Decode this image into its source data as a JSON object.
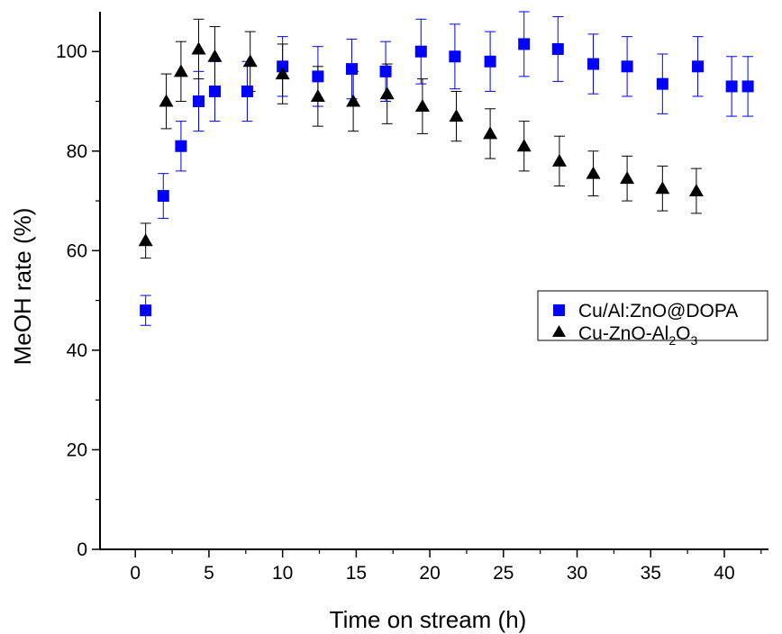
{
  "chart_data": {
    "type": "scatter",
    "xlabel": "Time on stream (h)",
    "ylabel": "MeOH rate (%)",
    "xlim": [
      -2.4,
      43
    ],
    "ylim": [
      0,
      108
    ],
    "xticks": [
      0,
      5,
      10,
      15,
      20,
      25,
      30,
      35,
      40
    ],
    "yticks": [
      0,
      20,
      40,
      60,
      80,
      100
    ],
    "grid": false,
    "legend_position": "right",
    "series": [
      {
        "name": "Cu/Al:ZnO@DOPA",
        "marker": "square",
        "color": "#0000ff",
        "x": [
          0.7,
          1.9,
          3.1,
          4.3,
          5.4,
          7.6,
          10.0,
          12.4,
          14.7,
          17.0,
          19.4,
          21.7,
          24.1,
          26.4,
          28.7,
          31.1,
          33.4,
          35.8,
          38.2,
          40.5,
          41.6
        ],
        "y": [
          48,
          71,
          81,
          90,
          92,
          92,
          97,
          95,
          96.5,
          96,
          100,
          99,
          98,
          101.5,
          100.5,
          97.5,
          97,
          93.5,
          97,
          93,
          93
        ],
        "err": [
          3,
          4.5,
          5,
          6,
          6,
          6,
          6,
          6,
          6,
          6,
          6.5,
          6.5,
          6,
          6.5,
          6.5,
          6,
          6,
          6,
          6,
          6,
          6
        ]
      },
      {
        "name": "Cu-ZnO-Al₂O₃",
        "name_main": "Cu-ZnO-Al",
        "name_sub1": "2",
        "name_mid": "O",
        "name_sub2": "3",
        "marker": "triangle",
        "color": "#000000",
        "x": [
          0.7,
          2.1,
          3.1,
          4.3,
          5.4,
          7.8,
          10.0,
          12.4,
          14.8,
          17.1,
          19.5,
          21.8,
          24.1,
          26.4,
          28.8,
          31.1,
          33.4,
          35.8,
          38.1
        ],
        "y": [
          62,
          90,
          96,
          100.5,
          99,
          98,
          95.5,
          91,
          90,
          91.5,
          89,
          87,
          83.5,
          81,
          78,
          75.5,
          74.5,
          72.5,
          72
        ],
        "err": [
          3.5,
          5.5,
          6,
          6,
          6,
          6,
          6,
          6,
          6,
          6,
          5.5,
          5,
          5,
          5,
          5,
          4.5,
          4.5,
          4.5,
          4.5
        ]
      }
    ]
  }
}
